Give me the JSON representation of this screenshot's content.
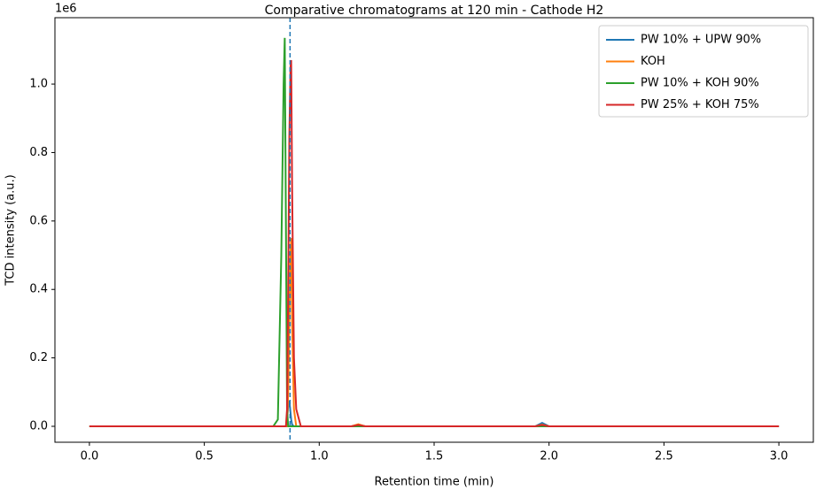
{
  "chart_data": {
    "type": "line",
    "title": "Comparative chromatograms at 120 min - Cathode H2",
    "x_label": "Retention time (min)",
    "y_label": "TCD intensity (a.u.)",
    "y_offset_label": "1e6",
    "x": [
      0,
      0.8,
      0.82,
      0.835,
      0.845,
      0.85,
      0.855,
      0.86,
      0.865,
      0.87,
      0.875,
      0.878,
      0.882,
      0.89,
      0.9,
      0.92,
      1.14,
      1.17,
      1.2,
      1.94,
      1.97,
      2.0,
      3.0
    ],
    "series": [
      {
        "name": "PW 10% + UPW 90%",
        "color": "#1f77b4",
        "values": [
          0,
          0,
          0,
          0,
          0,
          0,
          0,
          0.02,
          0.06,
          0.075,
          0.04,
          0.02,
          0.005,
          0,
          0,
          0,
          0,
          0.003,
          0,
          0,
          0.01,
          0,
          0
        ]
      },
      {
        "name": "KOH",
        "color": "#ff7f0e",
        "values": [
          0,
          0,
          0,
          0,
          0,
          0,
          0,
          0,
          0.1,
          0.3,
          0.5,
          0.55,
          0.3,
          0.05,
          0,
          0,
          0,
          0.006,
          0,
          0,
          0.005,
          0,
          0
        ]
      },
      {
        "name": "PW 10% + KOH 90%",
        "color": "#2ca02c",
        "values": [
          0,
          0,
          0.02,
          0.5,
          1.0,
          1.135,
          0.6,
          0.05,
          0,
          0,
          0,
          0,
          0,
          0,
          0,
          0,
          0,
          0,
          0,
          0,
          0,
          0,
          0
        ]
      },
      {
        "name": "PW 25% + KOH 75%",
        "color": "#d62728",
        "values": [
          0,
          0,
          0,
          0,
          0,
          0,
          0,
          0.05,
          0.4,
          0.85,
          1.05,
          1.07,
          0.7,
          0.2,
          0.05,
          0,
          0,
          0.004,
          0,
          0,
          0.004,
          0,
          0
        ]
      }
    ],
    "vline": 0.873,
    "vline_color": "#1f77b4",
    "xlim": [
      -0.15,
      3.15
    ],
    "ylim": [
      -0.0465,
      1.194
    ],
    "xticks": [
      {
        "value": 0,
        "label": "0.0"
      },
      0.5,
      {
        "value": 1,
        "label": "1.0"
      },
      1.5,
      {
        "value": 2,
        "label": "2.0"
      },
      2.5,
      {
        "value": 3,
        "label": "3.0"
      }
    ],
    "yticks": [
      {
        "value": 0,
        "label": "0.0"
      },
      0.2,
      0.4,
      0.6,
      0.8,
      {
        "value": 1,
        "label": "1.0"
      }
    ],
    "grid": false,
    "legend": "upper right"
  }
}
